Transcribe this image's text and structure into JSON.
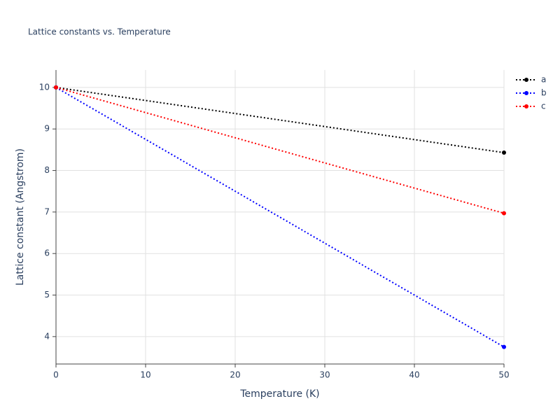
{
  "chart_data": {
    "type": "line",
    "title": "Lattice constants vs. Temperature",
    "x_label": "Temperature (K)",
    "y_label": "Lattice constant (Angstrom)",
    "x": [
      0,
      50
    ],
    "series": [
      {
        "name": "a",
        "color": "#000000",
        "values": [
          10,
          8.43
        ]
      },
      {
        "name": "b",
        "color": "#0000ff",
        "values": [
          10,
          3.75
        ]
      },
      {
        "name": "c",
        "color": "#ff0000",
        "values": [
          10,
          6.97
        ]
      }
    ],
    "xlim": [
      0,
      50
    ],
    "xticks": [
      0,
      10,
      20,
      30,
      40,
      50
    ],
    "ylim": [
      3.34,
      10.42
    ],
    "yticks": [
      4,
      5,
      6,
      7,
      8,
      9,
      10
    ],
    "grid": true,
    "line_style": "dotted",
    "legend": "top-right"
  }
}
